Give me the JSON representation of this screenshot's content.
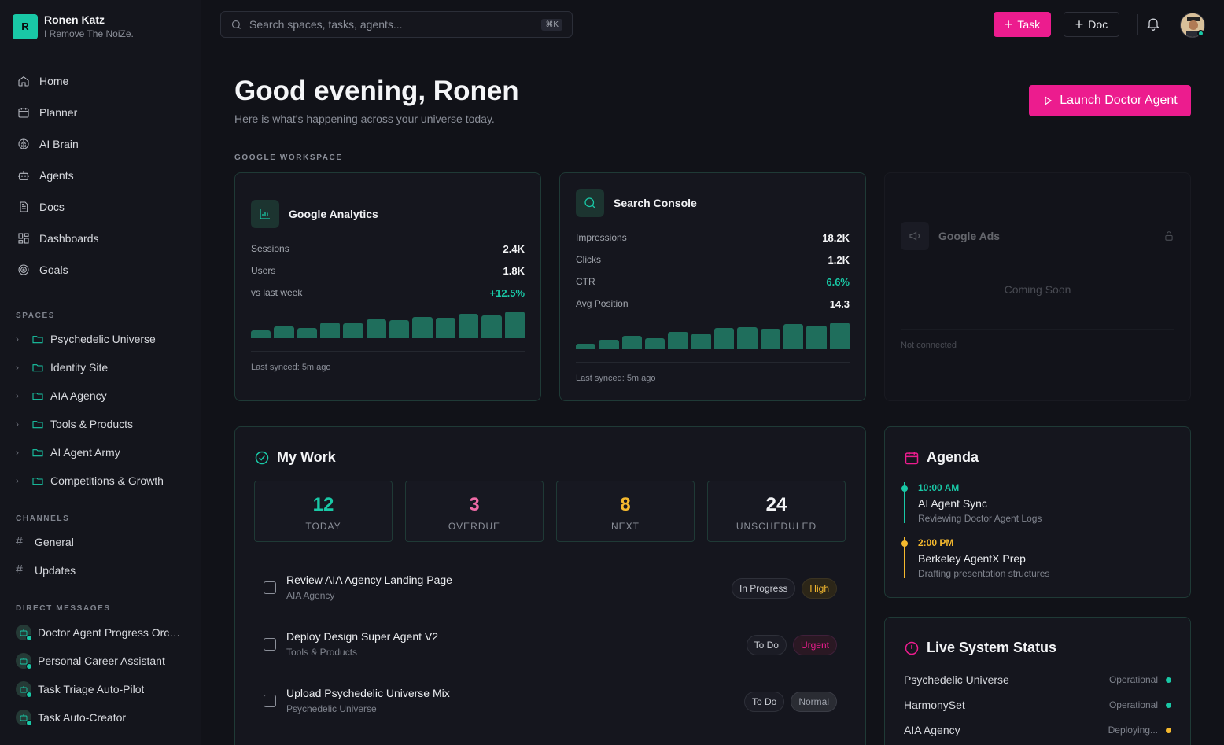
{
  "profile": {
    "initial": "R",
    "name": "Ronen Katz",
    "subtitle": "I Remove The NoiZe."
  },
  "nav": [
    {
      "label": "Home",
      "icon": "home-icon"
    },
    {
      "label": "Planner",
      "icon": "calendar-icon"
    },
    {
      "label": "AI Brain",
      "icon": "brain-icon"
    },
    {
      "label": "Agents",
      "icon": "bot-icon"
    },
    {
      "label": "Docs",
      "icon": "doc-icon"
    },
    {
      "label": "Dashboards",
      "icon": "dashboard-icon"
    },
    {
      "label": "Goals",
      "icon": "target-icon"
    }
  ],
  "spaces": {
    "label": "SPACES",
    "items": [
      "Psychedelic Universe",
      "Identity Site",
      "AIA Agency",
      "Tools & Products",
      "AI Agent Army",
      "Competitions & Growth"
    ]
  },
  "channels": {
    "label": "CHANNELS",
    "items": [
      "General",
      "Updates"
    ]
  },
  "dms": {
    "label": "DIRECT MESSAGES",
    "items": [
      "Doctor Agent Progress Orchestrator",
      "Personal Career Assistant",
      "Task Triage Auto-Pilot",
      "Task Auto-Creator"
    ]
  },
  "topbar": {
    "search_placeholder": "Search spaces, tasks, agents...",
    "shortcut": "⌘K",
    "task_label": "Task",
    "doc_label": "Doc"
  },
  "greeting": {
    "title": "Good evening, Ronen",
    "subtitle": "Here is what's happening across your universe today.",
    "launch_label": "Launch Doctor Agent"
  },
  "workspace_label": "GOOGLE WORKSPACE",
  "analytics": {
    "title": "Google Analytics",
    "metrics": [
      {
        "key": "Sessions",
        "value": "2.4K"
      },
      {
        "key": "Users",
        "value": "1.8K"
      },
      {
        "key": "vs last week",
        "value": "+12.5%"
      }
    ],
    "bars": [
      0.3,
      0.45,
      0.38,
      0.6,
      0.55,
      0.7,
      0.68,
      0.8,
      0.75,
      0.9,
      0.85,
      1.0
    ],
    "synced": "Last synced: 5m ago"
  },
  "console": {
    "title": "Search Console",
    "metrics": [
      {
        "key": "Impressions",
        "value": "18.2K"
      },
      {
        "key": "Clicks",
        "value": "1.2K"
      },
      {
        "key": "CTR",
        "value": "6.6%"
      },
      {
        "key": "Avg Position",
        "value": "14.3"
      }
    ],
    "bars": [
      0.2,
      0.35,
      0.5,
      0.42,
      0.65,
      0.6,
      0.78,
      0.82,
      0.75,
      0.95,
      0.88,
      1.0
    ],
    "synced": "Last synced: 5m ago"
  },
  "ads": {
    "title": "Google Ads",
    "coming": "Coming Soon",
    "status": "Not connected"
  },
  "mywork": {
    "title": "My Work",
    "stats": [
      {
        "num": "12",
        "label": "TODAY",
        "color": "#19c8a6"
      },
      {
        "num": "3",
        "label": "OVERDUE",
        "color": "#f06aa6"
      },
      {
        "num": "8",
        "label": "NEXT",
        "color": "#f5b92e"
      },
      {
        "num": "24",
        "label": "UNSCHEDULED",
        "color": "#f3f4f6"
      }
    ],
    "tasks": [
      {
        "title": "Review AIA Agency Landing Page",
        "space": "AIA Agency",
        "status": "In Progress",
        "priority": "High"
      },
      {
        "title": "Deploy Design Super Agent V2",
        "space": "Tools & Products",
        "status": "To Do",
        "priority": "Urgent"
      },
      {
        "title": "Upload Psychedelic Universe Mix",
        "space": "Psychedelic Universe",
        "status": "To Do",
        "priority": "Normal"
      }
    ]
  },
  "agenda": {
    "title": "Agenda",
    "items": [
      {
        "time": "10:00 AM",
        "title": "AI Agent Sync",
        "sub": "Reviewing Doctor Agent Logs",
        "color": "#19c8a6"
      },
      {
        "time": "2:00 PM",
        "title": "Berkeley AgentX Prep",
        "sub": "Drafting presentation structures",
        "color": "#f5b92e"
      }
    ]
  },
  "system": {
    "title": "Live System Status",
    "items": [
      {
        "name": "Psychedelic Universe",
        "status": "Operational",
        "color": "#19c8a6"
      },
      {
        "name": "HarmonySet",
        "status": "Operational",
        "color": "#19c8a6"
      },
      {
        "name": "AIA Agency",
        "status": "Deploying...",
        "color": "#f5b92e"
      }
    ]
  }
}
